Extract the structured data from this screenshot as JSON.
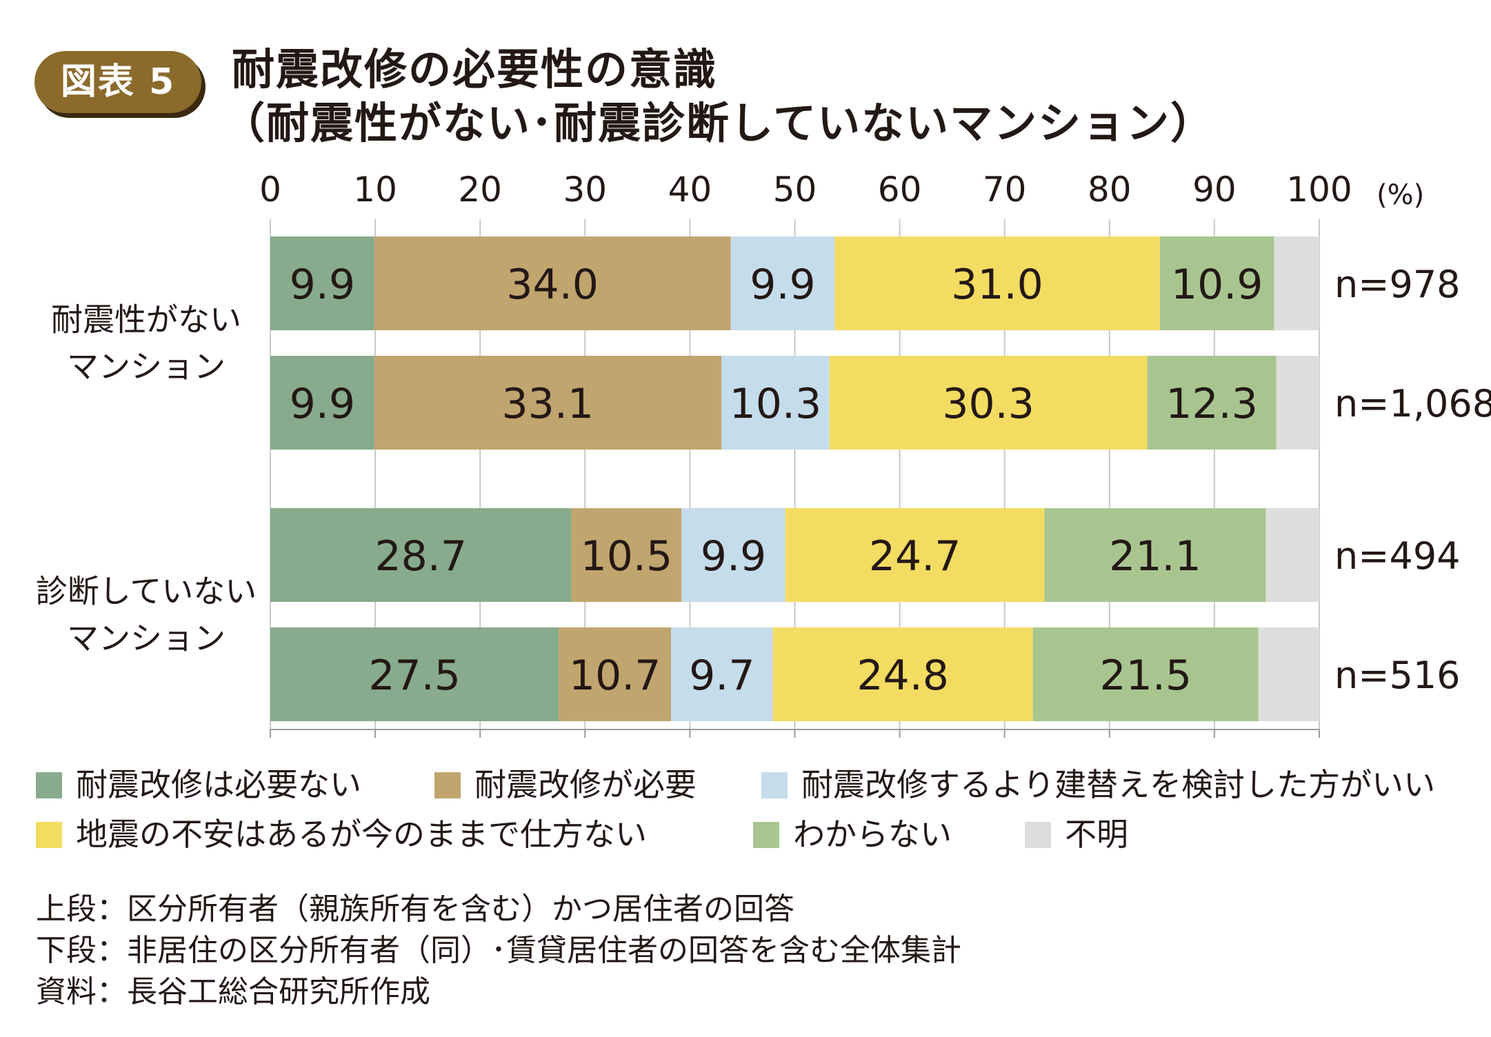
{
  "badge": "図表 5",
  "title_line1": "耐震改修の必要性の意識",
  "title_line2": "（耐震性がない･耐震診断していないマンション）",
  "chart_data": {
    "type": "bar",
    "orientation": "horizontal",
    "stacked": true,
    "xlim": [
      0,
      100
    ],
    "x_ticks": [
      "0",
      "10",
      "20",
      "30",
      "40",
      "50",
      "60",
      "70",
      "80",
      "90",
      "100"
    ],
    "x_unit": "(%)",
    "grid": true,
    "groups": [
      {
        "label_lines": [
          "耐震性がない",
          "マンション"
        ],
        "bars": [
          0,
          1
        ]
      },
      {
        "label_lines": [
          "診断していない",
          "マンション"
        ],
        "bars": [
          2,
          3
        ]
      }
    ],
    "bars": [
      {
        "n": "n=978",
        "values": [
          9.9,
          34.0,
          9.9,
          31.0,
          10.9,
          4.3
        ],
        "labels": [
          "9.9",
          "34.0",
          "9.9",
          "31.0",
          "10.9",
          ""
        ]
      },
      {
        "n": "n=1,068",
        "values": [
          9.9,
          33.1,
          10.3,
          30.3,
          12.3,
          4.1
        ],
        "labels": [
          "9.9",
          "33.1",
          "10.3",
          "30.3",
          "12.3",
          ""
        ]
      },
      {
        "n": "n=494",
        "values": [
          28.7,
          10.5,
          9.9,
          24.7,
          21.1,
          5.1
        ],
        "labels": [
          "28.7",
          "10.5",
          "9.9",
          "24.7",
          "21.1",
          ""
        ]
      },
      {
        "n": "n=516",
        "values": [
          27.5,
          10.7,
          9.7,
          24.8,
          21.5,
          5.8
        ],
        "labels": [
          "27.5",
          "10.7",
          "9.7",
          "24.8",
          "21.5",
          ""
        ]
      }
    ],
    "series": [
      {
        "name": "耐震改修は必要ない",
        "color": "#87ab8c"
      },
      {
        "name": "耐震改修が必要",
        "color": "#c1a56f"
      },
      {
        "name": "耐震改修するより建替えを検討した方がいい",
        "color": "#c5dceb"
      },
      {
        "name": "地震の不安はあるが今のままで仕方ない",
        "color": "#f4dc62"
      },
      {
        "name": "わからない",
        "color": "#a8c590"
      },
      {
        "name": "不明",
        "color": "#dcdedb"
      }
    ],
    "legend_position": "bottom"
  },
  "notes": [
    "上段：区分所有者（親族所有を含む）かつ居住者の回答",
    "下段：非居住の区分所有者（同）･賃貸居住者の回答を含む全体集計",
    "資料：長谷工総合研究所作成"
  ]
}
